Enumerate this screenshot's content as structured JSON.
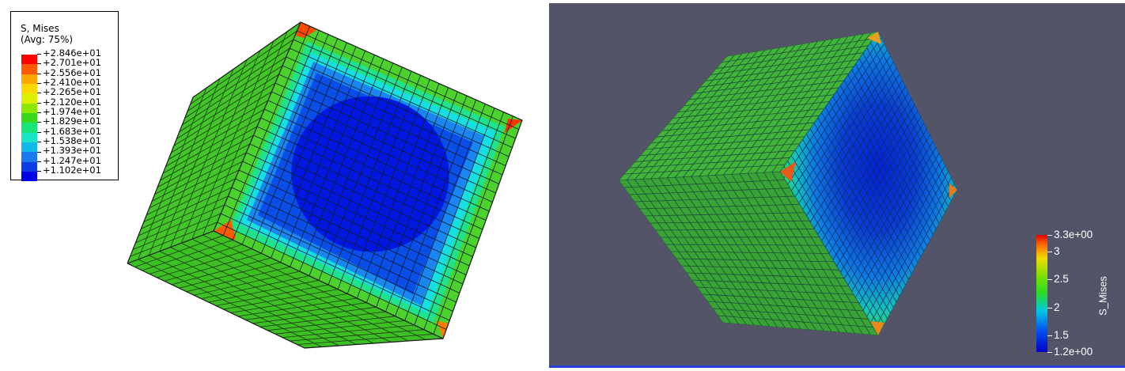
{
  "left_panel": {
    "legend_title": "S, Mises",
    "legend_subtitle": "(Avg: 75%)",
    "legend_values": [
      "+2.846e+01",
      "+2.701e+01",
      "+2.556e+01",
      "+2.410e+01",
      "+2.265e+01",
      "+2.120e+01",
      "+1.974e+01",
      "+1.829e+01",
      "+1.683e+01",
      "+1.538e+01",
      "+1.393e+01",
      "+1.247e+01",
      "+1.102e+01"
    ],
    "legend_colors": [
      "#ff0000",
      "#ff5a00",
      "#ffa600",
      "#ffd800",
      "#ddf000",
      "#8fe800",
      "#3ad81c",
      "#19e47a",
      "#19e4c6",
      "#12b8ea",
      "#1a79ee",
      "#0a3ee4",
      "#0000e6"
    ],
    "cube_face_colors": [
      "#38c81e",
      "#0a33d6"
    ]
  },
  "right_panel": {
    "viewport_bg": "#535467",
    "colorbar_ticks": [
      "3.3e+00",
      "3",
      "2.5",
      "2",
      "1.5",
      "1.2e+00"
    ],
    "colorbar_title": "S_Mises",
    "colorbar_range": [
      1.2,
      3.3
    ],
    "cube_face_colors": [
      "#3aa838",
      "#0a34c8"
    ]
  }
}
